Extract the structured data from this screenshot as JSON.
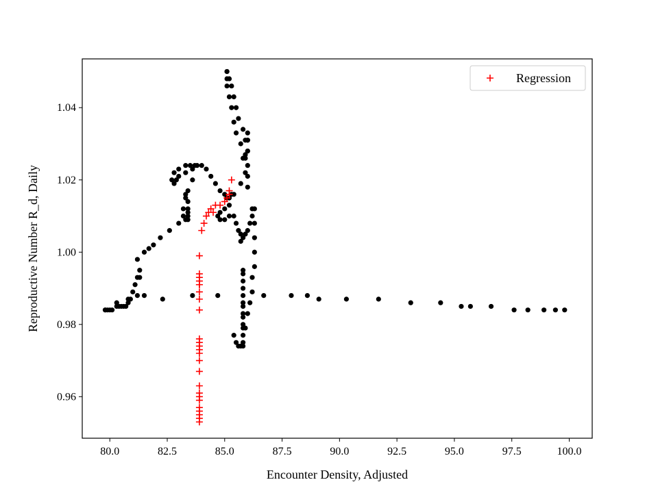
{
  "chart_data": {
    "type": "scatter",
    "title": "",
    "xlabel": "Encounter Density, Adjusted",
    "ylabel": "Reproductive Number R_d, Daily",
    "xlim": [
      78.8,
      101.0
    ],
    "ylim": [
      0.9485,
      1.0535
    ],
    "xticks": [
      80.0,
      82.5,
      85.0,
      87.5,
      90.0,
      92.5,
      95.0,
      97.5,
      100.0
    ],
    "xtick_labels": [
      "80.0",
      "82.5",
      "85.0",
      "87.5",
      "90.0",
      "92.5",
      "95.0",
      "97.5",
      "100.0"
    ],
    "yticks": [
      0.96,
      0.98,
      1.0,
      1.02,
      1.04
    ],
    "ytick_labels": [
      "0.96",
      "0.98",
      "1.00",
      "1.02",
      "1.04"
    ],
    "grid": false,
    "legend_position": "upper-right",
    "colors": {
      "observed": "#000000",
      "regression": "#ff0000"
    },
    "series": [
      {
        "marker": "dot",
        "color": "#000000",
        "x": [
          99.8,
          99.4,
          98.9,
          98.2,
          97.6,
          96.6,
          95.7,
          95.3,
          94.4,
          93.1,
          91.7,
          90.3,
          89.1,
          88.6,
          87.9,
          86.7,
          85.8,
          85.8,
          85.8,
          85.8,
          85.8,
          85.8,
          85.8,
          85.8,
          85.8,
          85.8,
          85.8,
          85.8,
          85.8,
          85.8,
          85.7,
          85.6,
          85.5,
          85.4,
          85.9,
          86.0,
          86.1,
          86.2,
          86.2,
          86.3,
          86.3,
          86.3,
          86.3,
          86.3,
          86.2,
          86.2,
          86.1,
          86.0,
          85.9,
          85.8,
          85.7,
          85.7,
          85.6,
          85.5,
          85.4,
          85.2,
          85.0,
          84.8,
          84.7,
          84.8,
          85.0,
          85.2,
          85.4,
          85.7,
          85.9,
          85.9,
          86.0,
          86.0,
          86.0,
          86.0,
          86.0,
          86.0,
          86.0,
          86.0,
          85.8,
          85.7,
          85.5,
          85.4,
          85.3,
          85.2,
          85.1,
          85.1,
          85.1,
          85.1,
          85.2,
          85.3,
          85.4,
          85.5,
          85.6,
          85.8,
          85.9,
          85.9,
          85.3,
          85.2,
          85.1,
          85.0,
          84.8,
          84.6,
          84.4,
          84.2,
          84.0,
          83.7,
          83.5,
          83.3,
          83.0,
          82.8,
          82.7,
          82.8,
          82.9,
          83.0,
          83.3,
          83.6,
          83.8,
          83.6,
          83.4,
          83.3,
          83.2,
          83.2,
          83.3,
          83.4,
          83.4,
          83.4,
          83.4,
          83.4,
          83.3,
          83.0,
          82.6,
          82.2,
          81.9,
          81.7,
          81.5,
          81.2,
          81.3,
          81.3,
          81.2,
          81.1,
          81.0,
          80.9,
          80.8,
          80.7,
          80.6,
          80.5,
          80.4,
          80.3,
          80.1,
          80.0,
          79.9,
          79.8,
          79.8,
          80.3,
          80.8,
          81.2,
          81.5,
          82.3,
          83.6,
          84.7
        ],
        "y": [
          0.984,
          0.984,
          0.984,
          0.984,
          0.984,
          0.985,
          0.985,
          0.985,
          0.986,
          0.986,
          0.987,
          0.987,
          0.987,
          0.988,
          0.988,
          0.988,
          0.974,
          0.975,
          0.977,
          0.979,
          0.98,
          0.982,
          0.983,
          0.985,
          0.986,
          0.988,
          0.99,
          0.992,
          0.994,
          0.995,
          0.974,
          0.974,
          0.975,
          0.977,
          0.979,
          0.983,
          0.986,
          0.989,
          0.993,
          0.996,
          1.0,
          1.004,
          1.008,
          1.012,
          1.012,
          1.01,
          1.008,
          1.006,
          1.005,
          1.004,
          1.003,
          1.005,
          1.006,
          1.008,
          1.01,
          1.01,
          1.009,
          1.009,
          1.01,
          1.011,
          1.012,
          1.013,
          1.016,
          1.019,
          1.022,
          1.026,
          1.028,
          1.031,
          1.033,
          1.031,
          1.028,
          1.024,
          1.021,
          1.018,
          1.026,
          1.03,
          1.033,
          1.036,
          1.04,
          1.043,
          1.046,
          1.048,
          1.05,
          1.05,
          1.048,
          1.046,
          1.043,
          1.04,
          1.037,
          1.034,
          1.031,
          1.027,
          1.016,
          1.015,
          1.015,
          1.016,
          1.017,
          1.019,
          1.021,
          1.023,
          1.024,
          1.024,
          1.024,
          1.024,
          1.023,
          1.022,
          1.02,
          1.019,
          1.02,
          1.021,
          1.022,
          1.023,
          1.024,
          1.02,
          1.017,
          1.015,
          1.012,
          1.01,
          1.009,
          1.009,
          1.01,
          1.011,
          1.012,
          1.014,
          1.016,
          1.008,
          1.006,
          1.004,
          1.002,
          1.001,
          1.0,
          0.998,
          0.995,
          0.993,
          0.993,
          0.991,
          0.989,
          0.987,
          0.986,
          0.985,
          0.985,
          0.985,
          0.985,
          0.985,
          0.984,
          0.984,
          0.984,
          0.984,
          0.984,
          0.986,
          0.987,
          0.988,
          0.988,
          0.987,
          0.988,
          0.988
        ]
      },
      {
        "name": "Regression",
        "marker": "plus",
        "color": "#ff0000",
        "x": [
          83.9,
          83.9,
          83.9,
          83.9,
          83.9,
          83.9,
          83.9,
          83.9,
          83.9,
          83.9,
          83.9,
          83.9,
          83.9,
          83.9,
          83.9,
          83.9,
          83.9,
          83.9,
          83.9,
          83.9,
          83.9,
          83.9,
          83.9,
          83.9,
          83.9,
          84.0,
          84.1,
          84.2,
          84.3,
          84.4,
          84.5,
          84.6,
          84.8,
          85.0,
          85.1,
          85.2,
          85.2,
          85.3
        ],
        "y": [
          0.953,
          0.954,
          0.955,
          0.956,
          0.957,
          0.959,
          0.96,
          0.961,
          0.963,
          0.967,
          0.97,
          0.972,
          0.973,
          0.974,
          0.975,
          0.976,
          0.984,
          0.987,
          0.989,
          0.991,
          0.991,
          0.992,
          0.993,
          0.994,
          0.999,
          1.006,
          1.008,
          1.01,
          1.011,
          1.012,
          1.011,
          1.013,
          1.013,
          1.014,
          1.015,
          1.016,
          1.017,
          1.02
        ]
      }
    ]
  }
}
